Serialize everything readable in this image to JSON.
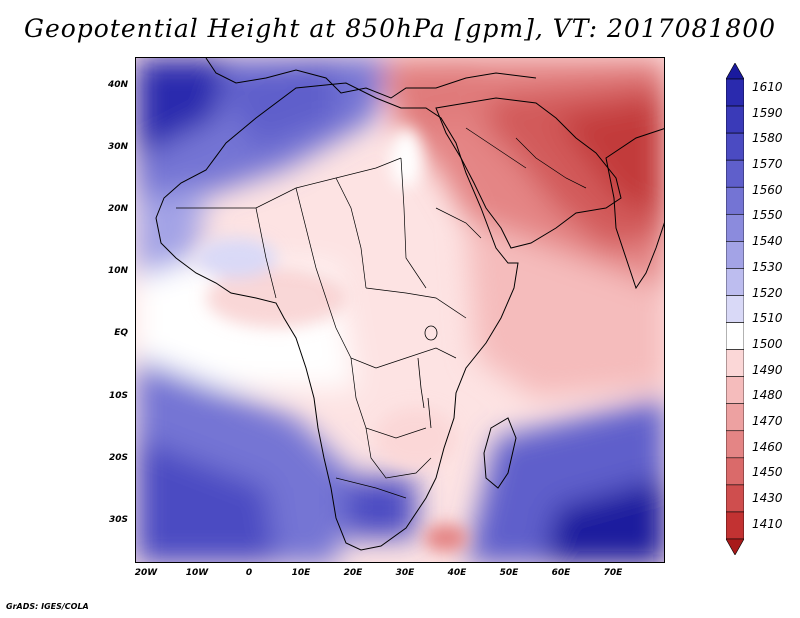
{
  "title": "Geopotential Height at 850hPa [gpm], VT: 2017081800",
  "credit": "GrADS: IGES/COLA",
  "map": {
    "region": "Africa, Middle East and Indian Ocean",
    "lat_labels": [
      "40N",
      "30N",
      "20N",
      "10N",
      "EQ",
      "10S",
      "20S",
      "30S"
    ],
    "lon_labels": [
      "20W",
      "10W",
      "0",
      "10E",
      "20E",
      "30E",
      "40E",
      "50E",
      "60E",
      "70E"
    ]
  },
  "colorbar": {
    "levels": [
      "1610",
      "1590",
      "1580",
      "1570",
      "1560",
      "1550",
      "1540",
      "1530",
      "1520",
      "1510",
      "1500",
      "1490",
      "1480",
      "1470",
      "1460",
      "1450",
      "1430",
      "1410"
    ],
    "colors": [
      "#1a1a9e",
      "#2a2aae",
      "#3a3ab8",
      "#4b4bc2",
      "#5f5fcb",
      "#7474d4",
      "#8b8bdd",
      "#a3a3e6",
      "#bdbdef",
      "#d9d9f7",
      "#ffffff",
      "#fbd7d7",
      "#f5bcbc",
      "#eda1a1",
      "#e48585",
      "#da6a6a",
      "#cf4e4e",
      "#c23232",
      "#a81a1a"
    ]
  }
}
